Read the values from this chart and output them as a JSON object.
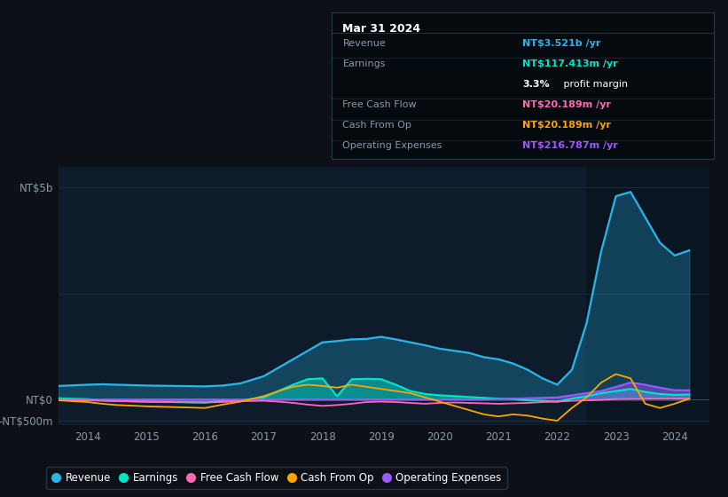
{
  "bg_color": "#0d1117",
  "plot_bg_color": "#0d1b2a",
  "grid_color": "#1e2d3d",
  "line_colors": {
    "revenue": "#29b5e8",
    "earnings": "#00e5c8",
    "fcf": "#ff69b4",
    "cashop": "#ffa500",
    "opex": "#9b59ff"
  },
  "tooltip": {
    "date": "Mar 31 2024",
    "revenue_label": "Revenue",
    "revenue_value": "NT$3.521b /yr",
    "revenue_color": "#29b5e8",
    "earnings_label": "Earnings",
    "earnings_value": "NT$117.413m /yr",
    "earnings_color": "#00e5c8",
    "profit_pct": "3.3%",
    "profit_text": " profit margin",
    "fcf_label": "Free Cash Flow",
    "fcf_value": "NT$20.189m /yr",
    "fcf_color": "#ff69b4",
    "cashop_label": "Cash From Op",
    "cashop_value": "NT$20.189m /yr",
    "cashop_color": "#ffa500",
    "opex_label": "Operating Expenses",
    "opex_value": "NT$216.787m /yr",
    "opex_color": "#9b59ff"
  },
  "ylim": [
    -600000000,
    5500000000
  ],
  "xlim": [
    2013.5,
    2024.6
  ],
  "xticks": [
    2014,
    2015,
    2016,
    2017,
    2018,
    2019,
    2020,
    2021,
    2022,
    2023,
    2024
  ],
  "legend": [
    {
      "label": "Revenue",
      "color": "#29b5e8"
    },
    {
      "label": "Earnings",
      "color": "#00e5c8"
    },
    {
      "label": "Free Cash Flow",
      "color": "#ff69b4"
    },
    {
      "label": "Cash From Op",
      "color": "#ffa500"
    },
    {
      "label": "Operating Expenses",
      "color": "#9b59ff"
    }
  ],
  "years": [
    2013.5,
    2014.0,
    2014.25,
    2014.5,
    2015.0,
    2015.5,
    2016.0,
    2016.3,
    2016.6,
    2017.0,
    2017.25,
    2017.5,
    2017.75,
    2018.0,
    2018.25,
    2018.5,
    2018.75,
    2019.0,
    2019.25,
    2019.5,
    2019.75,
    2020.0,
    2020.25,
    2020.5,
    2020.75,
    2021.0,
    2021.25,
    2021.5,
    2021.75,
    2022.0,
    2022.25,
    2022.5,
    2022.75,
    2023.0,
    2023.25,
    2023.5,
    2023.75,
    2024.0,
    2024.25
  ],
  "revenue": [
    320000000,
    350000000,
    360000000,
    350000000,
    330000000,
    320000000,
    310000000,
    330000000,
    380000000,
    550000000,
    750000000,
    950000000,
    1150000000,
    1350000000,
    1380000000,
    1420000000,
    1430000000,
    1480000000,
    1420000000,
    1350000000,
    1280000000,
    1200000000,
    1150000000,
    1100000000,
    1000000000,
    950000000,
    850000000,
    700000000,
    500000000,
    350000000,
    700000000,
    1800000000,
    3500000000,
    4800000000,
    4900000000,
    4300000000,
    3700000000,
    3400000000,
    3521000000
  ],
  "earnings": [
    30000000,
    10000000,
    -20000000,
    -30000000,
    -50000000,
    -60000000,
    -70000000,
    -30000000,
    -20000000,
    50000000,
    200000000,
    350000000,
    480000000,
    500000000,
    80000000,
    480000000,
    490000000,
    480000000,
    350000000,
    200000000,
    130000000,
    100000000,
    80000000,
    60000000,
    40000000,
    20000000,
    10000000,
    -20000000,
    -30000000,
    -50000000,
    20000000,
    80000000,
    150000000,
    200000000,
    250000000,
    180000000,
    130000000,
    110000000,
    117413000
  ],
  "fcf": [
    -10000000,
    -20000000,
    -30000000,
    -40000000,
    -50000000,
    -60000000,
    -70000000,
    -60000000,
    -40000000,
    -30000000,
    -50000000,
    -80000000,
    -120000000,
    -150000000,
    -130000000,
    -100000000,
    -60000000,
    -50000000,
    -60000000,
    -80000000,
    -100000000,
    -80000000,
    -70000000,
    -80000000,
    -90000000,
    -100000000,
    -90000000,
    -80000000,
    -60000000,
    -50000000,
    -30000000,
    -20000000,
    -10000000,
    10000000,
    15000000,
    18000000,
    20000000,
    20189000,
    20189000
  ],
  "cashop": [
    -20000000,
    -60000000,
    -100000000,
    -130000000,
    -160000000,
    -180000000,
    -200000000,
    -120000000,
    -50000000,
    80000000,
    200000000,
    300000000,
    350000000,
    320000000,
    280000000,
    350000000,
    300000000,
    250000000,
    200000000,
    150000000,
    50000000,
    -50000000,
    -150000000,
    -250000000,
    -350000000,
    -400000000,
    -350000000,
    -380000000,
    -450000000,
    -500000000,
    -200000000,
    50000000,
    400000000,
    600000000,
    500000000,
    -100000000,
    -200000000,
    -100000000,
    20189000
  ],
  "opex": [
    0,
    0,
    0,
    0,
    0,
    0,
    0,
    0,
    0,
    0,
    0,
    0,
    0,
    0,
    0,
    0,
    0,
    0,
    0,
    0,
    0,
    0,
    0,
    0,
    0,
    10000000,
    20000000,
    30000000,
    40000000,
    50000000,
    100000000,
    150000000,
    200000000,
    300000000,
    400000000,
    350000000,
    280000000,
    220000000,
    216787000
  ]
}
